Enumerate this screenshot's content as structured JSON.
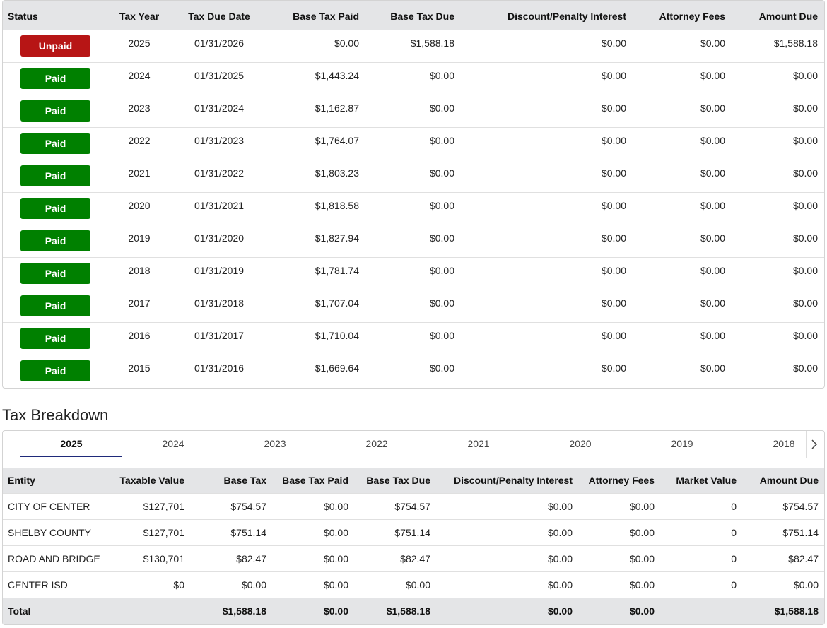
{
  "history": {
    "headers": [
      "Status",
      "Tax Year",
      "Tax Due Date",
      "Base Tax Paid",
      "Base Tax Due",
      "Discount/Penalty Interest",
      "Attorney Fees",
      "Amount Due"
    ],
    "badge_colors": [
      "#b71515",
      "#008000",
      "#008000",
      "#008000",
      "#008000",
      "#008000",
      "#008000",
      "#008000",
      "#008000",
      "#008000",
      "#008000"
    ],
    "rows": [
      [
        "Unpaid",
        "2025",
        "01/31/2026",
        "$0.00",
        "$1,588.18",
        "$0.00",
        "$0.00",
        "$1,588.18"
      ],
      [
        "Paid",
        "2024",
        "01/31/2025",
        "$1,443.24",
        "$0.00",
        "$0.00",
        "$0.00",
        "$0.00"
      ],
      [
        "Paid",
        "2023",
        "01/31/2024",
        "$1,162.87",
        "$0.00",
        "$0.00",
        "$0.00",
        "$0.00"
      ],
      [
        "Paid",
        "2022",
        "01/31/2023",
        "$1,764.07",
        "$0.00",
        "$0.00",
        "$0.00",
        "$0.00"
      ],
      [
        "Paid",
        "2021",
        "01/31/2022",
        "$1,803.23",
        "$0.00",
        "$0.00",
        "$0.00",
        "$0.00"
      ],
      [
        "Paid",
        "2020",
        "01/31/2021",
        "$1,818.58",
        "$0.00",
        "$0.00",
        "$0.00",
        "$0.00"
      ],
      [
        "Paid",
        "2019",
        "01/31/2020",
        "$1,827.94",
        "$0.00",
        "$0.00",
        "$0.00",
        "$0.00"
      ],
      [
        "Paid",
        "2018",
        "01/31/2019",
        "$1,781.74",
        "$0.00",
        "$0.00",
        "$0.00",
        "$0.00"
      ],
      [
        "Paid",
        "2017",
        "01/31/2018",
        "$1,707.04",
        "$0.00",
        "$0.00",
        "$0.00",
        "$0.00"
      ],
      [
        "Paid",
        "2016",
        "01/31/2017",
        "$1,710.04",
        "$0.00",
        "$0.00",
        "$0.00",
        "$0.00"
      ],
      [
        "Paid",
        "2015",
        "01/31/2016",
        "$1,669.64",
        "$0.00",
        "$0.00",
        "$0.00",
        "$0.00"
      ]
    ]
  },
  "breakdown": {
    "title": "Tax Breakdown",
    "tabs": [
      "2025",
      "2024",
      "2023",
      "2022",
      "2021",
      "2020",
      "2019",
      "2018"
    ],
    "headers": [
      "Entity",
      "Taxable Value",
      "Base Tax",
      "Base Tax Paid",
      "Base Tax Due",
      "Discount/Penalty Interest",
      "Attorney Fees",
      "Market Value",
      "Amount Due"
    ],
    "rows": [
      [
        "CITY OF CENTER",
        "$127,701",
        "$754.57",
        "$0.00",
        "$754.57",
        "$0.00",
        "$0.00",
        "0",
        "$754.57"
      ],
      [
        "SHELBY COUNTY",
        "$127,701",
        "$751.14",
        "$0.00",
        "$751.14",
        "$0.00",
        "$0.00",
        "0",
        "$751.14"
      ],
      [
        "ROAD AND BRIDGE",
        "$130,701",
        "$82.47",
        "$0.00",
        "$82.47",
        "$0.00",
        "$0.00",
        "0",
        "$82.47"
      ],
      [
        "CENTER ISD",
        "$0",
        "$0.00",
        "$0.00",
        "$0.00",
        "$0.00",
        "$0.00",
        "0",
        "$0.00"
      ]
    ],
    "total": {
      "label": "Total",
      "base_tax": "$1,588.18",
      "base_tax_paid": "$0.00",
      "base_tax_due": "$1,588.18",
      "discount_penalty_interest": "$0.00",
      "attorney_fees": "$0.00",
      "amount_due": "$1,588.18"
    }
  }
}
